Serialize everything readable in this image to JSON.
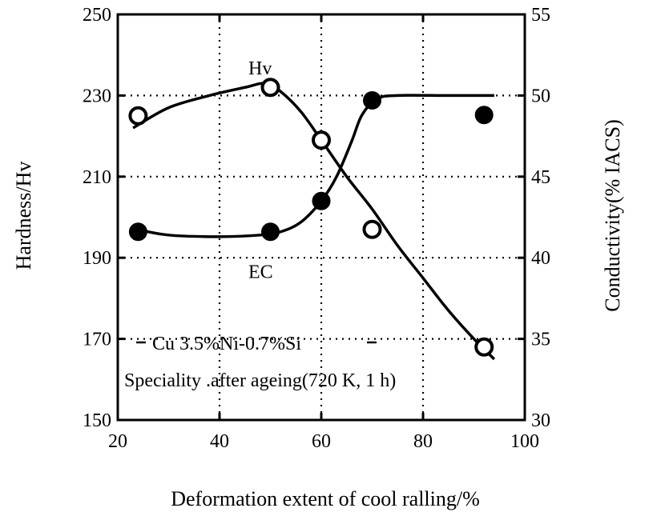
{
  "chart_data": {
    "type": "line",
    "xlabel": "Deformation extent of cool ralling/%",
    "ylabel_left": "Hardness/Hv",
    "ylabel_right": "Conductivity(% IACS)",
    "xlim": [
      20,
      100
    ],
    "ylim_left": [
      150,
      250
    ],
    "ylim_right": [
      30,
      55
    ],
    "x_ticks": [
      "20",
      "40",
      "60",
      "80",
      "100"
    ],
    "y_left_ticks": [
      "150",
      "170",
      "190",
      "210",
      "230",
      "250"
    ],
    "y_right_ticks": [
      "30",
      "35",
      "40",
      "45",
      "50",
      "55"
    ],
    "grid": true,
    "series": [
      {
        "name": "Hv",
        "axis": "left",
        "marker": "open-circle",
        "points": [
          {
            "x": 24,
            "y": 225
          },
          {
            "x": 50,
            "y": 232
          },
          {
            "x": 60,
            "y": 219
          },
          {
            "x": 70,
            "y": 197
          },
          {
            "x": 92,
            "y": 168
          }
        ],
        "curve": [
          {
            "x": 23,
            "y": 222
          },
          {
            "x": 30,
            "y": 227
          },
          {
            "x": 38,
            "y": 230
          },
          {
            "x": 45,
            "y": 232
          },
          {
            "x": 49,
            "y": 233
          },
          {
            "x": 52,
            "y": 231
          },
          {
            "x": 56,
            "y": 226
          },
          {
            "x": 60,
            "y": 219
          },
          {
            "x": 65,
            "y": 210
          },
          {
            "x": 70,
            "y": 202
          },
          {
            "x": 75,
            "y": 193
          },
          {
            "x": 80,
            "y": 185
          },
          {
            "x": 85,
            "y": 177
          },
          {
            "x": 90,
            "y": 170
          },
          {
            "x": 94,
            "y": 165
          }
        ]
      },
      {
        "name": "EC",
        "axis": "right",
        "marker": "filled-circle",
        "points": [
          {
            "x": 24,
            "y": 41.6
          },
          {
            "x": 50,
            "y": 41.6
          },
          {
            "x": 60,
            "y": 43.5
          },
          {
            "x": 70,
            "y": 49.7
          },
          {
            "x": 92,
            "y": 48.8
          }
        ],
        "curve": [
          {
            "x": 23,
            "y": 41.8
          },
          {
            "x": 30,
            "y": 41.4
          },
          {
            "x": 40,
            "y": 41.3
          },
          {
            "x": 48,
            "y": 41.4
          },
          {
            "x": 52,
            "y": 41.6
          },
          {
            "x": 56,
            "y": 42.2
          },
          {
            "x": 60,
            "y": 43.5
          },
          {
            "x": 63,
            "y": 45.0
          },
          {
            "x": 66,
            "y": 47.2
          },
          {
            "x": 68,
            "y": 48.8
          },
          {
            "x": 71,
            "y": 49.8
          },
          {
            "x": 75,
            "y": 50.0
          },
          {
            "x": 85,
            "y": 50.0
          },
          {
            "x": 94,
            "y": 50.0
          }
        ]
      }
    ],
    "annotations": [
      {
        "text": "Hv",
        "x": 60,
        "y_left": 223
      },
      {
        "text": "EC",
        "x": 60,
        "y_left": 184
      },
      {
        "text": "Cu 3.5%Ni-0.7%Si",
        "x": 60,
        "y_left": 168
      },
      {
        "text": "Speciality .after  ageing(720 K, 1 h)",
        "x": 60,
        "y_left": 159
      }
    ]
  }
}
